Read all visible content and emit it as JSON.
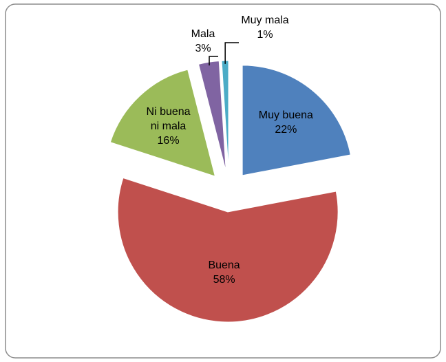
{
  "chart_data": {
    "type": "pie",
    "categories": [
      "Muy buena",
      "Buena",
      "Ni buena ni mala",
      "Mala",
      "Muy mala"
    ],
    "values": [
      22,
      58,
      16,
      3,
      1
    ],
    "value_labels": [
      "22%",
      "58%",
      "16%",
      "3%",
      "1%"
    ],
    "colors": [
      "#4f81bd",
      "#c0504d",
      "#9bbb59",
      "#8064a2",
      "#4bacc6"
    ],
    "exploded": true
  }
}
